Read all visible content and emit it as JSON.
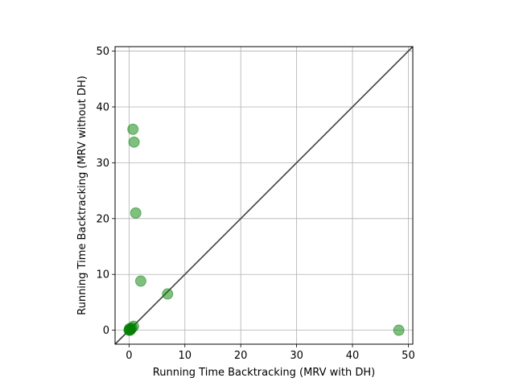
{
  "chart_data": {
    "type": "scatter",
    "xlabel": "Running Time Backtracking (MRV with DH)",
    "ylabel": "Running Time Backtracking (MRV without DH)",
    "xlim": [
      -2.5,
      50.8
    ],
    "ylim": [
      -2.5,
      50.8
    ],
    "xticks": [
      0,
      10,
      20,
      30,
      40,
      50
    ],
    "yticks": [
      0,
      10,
      20,
      30,
      40,
      50
    ],
    "grid": true,
    "diagonal_line": true,
    "marker_color": "#008000",
    "line_color": "#404040",
    "series": [
      {
        "points": [
          {
            "x": 0.7,
            "y": 36.0
          },
          {
            "x": 0.9,
            "y": 33.7
          },
          {
            "x": 1.2,
            "y": 21.0
          },
          {
            "x": 2.1,
            "y": 8.8
          },
          {
            "x": 6.9,
            "y": 6.5
          },
          {
            "x": 48.3,
            "y": 0.0
          },
          {
            "x": 0.8,
            "y": 0.7
          },
          {
            "x": 0.5,
            "y": 0.4
          },
          {
            "x": 0.3,
            "y": 0.2
          },
          {
            "x": 0.1,
            "y": 0.1
          },
          {
            "x": 0.0,
            "y": 0.0
          },
          {
            "x": 0.2,
            "y": 0.0
          },
          {
            "x": 0.1,
            "y": 0.3
          }
        ]
      }
    ]
  }
}
